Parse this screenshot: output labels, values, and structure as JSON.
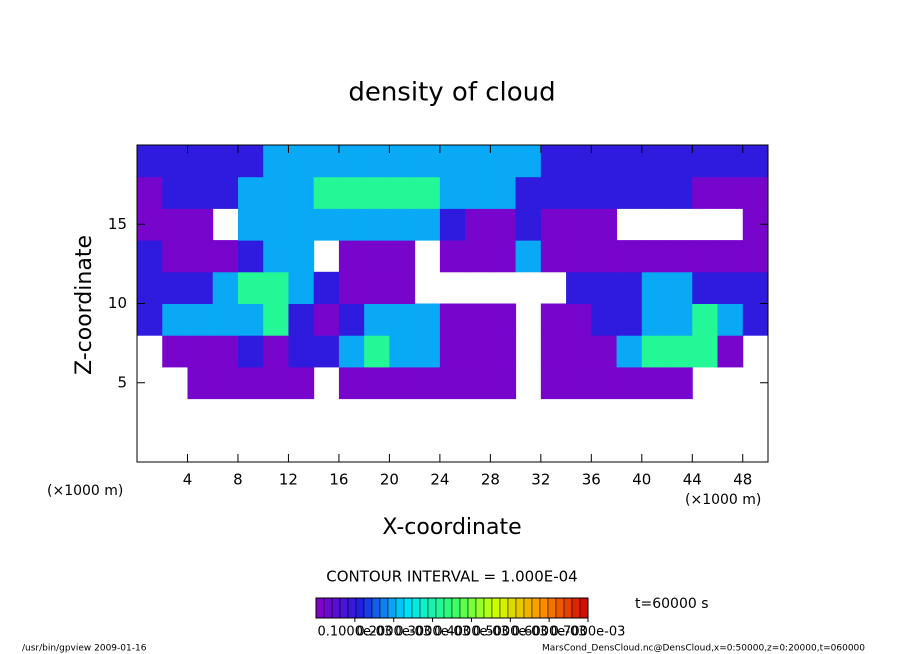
{
  "chart_data": {
    "type": "heatmap",
    "title": "density of cloud",
    "x_label": "X-coordinate",
    "y_label": "Z-coordinate",
    "x_unit_left": "(×1000 m)",
    "x_unit_right": "(×1000 m)",
    "contour_note": "CONTOUR INTERVAL = 1.000E-04",
    "time_label": "t=60000 s",
    "footer_left": "/usr/bin/gpview  2009-01-16",
    "footer_right": "MarsCond_DensCloud.nc@DensCloud,x=0:50000,z=0:20000,t=060000",
    "xlim": [
      0,
      50
    ],
    "ylim": [
      0,
      20
    ],
    "xticks": [
      4,
      8,
      12,
      16,
      20,
      24,
      28,
      32,
      36,
      40,
      44,
      48
    ],
    "yticks": [
      5,
      10,
      15
    ],
    "x": [
      0,
      2,
      4,
      6,
      8,
      10,
      12,
      14,
      16,
      18,
      20,
      22,
      24,
      26,
      28,
      30,
      32,
      34,
      36,
      38,
      40,
      42,
      44,
      46,
      48,
      50
    ],
    "y": [
      0,
      2,
      4,
      6,
      8,
      10,
      12,
      14,
      16,
      18,
      20
    ],
    "zlim": [
      0,
      0.0007
    ],
    "zticks": [
      {
        "value": 0.0001,
        "label": "0.1000e-03"
      },
      {
        "value": 0.0002,
        "label": "0.2000e-03"
      },
      {
        "value": 0.0003,
        "label": "0.3000e-03"
      },
      {
        "value": 0.0004,
        "label": "0.4000e-03"
      },
      {
        "value": 0.0005,
        "label": "0.5000e-03"
      },
      {
        "value": 0.0006,
        "label": "0.6000e-03"
      },
      {
        "value": 0.0007,
        "label": "0.7000e-03"
      }
    ],
    "colormap": [
      "#8a00c8",
      "#2020e0",
      "#00e0ff",
      "#30ff70",
      "#d0ff00",
      "#ff9000",
      "#d00000"
    ],
    "values": [
      [
        null,
        null,
        null,
        null,
        null,
        null,
        null,
        null,
        null,
        null,
        null,
        null,
        null,
        null,
        null,
        null,
        null,
        null,
        null,
        null,
        null,
        null,
        null,
        null,
        null
      ],
      [
        null,
        null,
        null,
        null,
        null,
        null,
        null,
        null,
        null,
        null,
        null,
        null,
        null,
        null,
        null,
        null,
        null,
        null,
        null,
        null,
        null,
        null,
        null,
        null,
        null
      ],
      [
        null,
        null,
        2e-05,
        2e-05,
        2e-05,
        2e-05,
        2e-05,
        null,
        2e-05,
        2e-05,
        2e-05,
        2e-05,
        2e-05,
        2e-05,
        2e-05,
        null,
        2e-05,
        2e-05,
        2e-05,
        2e-05,
        2e-05,
        2e-05,
        null,
        null,
        null
      ],
      [
        null,
        2e-05,
        2e-05,
        2e-05,
        0.0001,
        2e-05,
        0.0001,
        0.0001,
        0.0002,
        0.00032,
        0.0002,
        0.0002,
        2e-05,
        2e-05,
        2e-05,
        null,
        2e-05,
        2e-05,
        2e-05,
        0.0002,
        0.00032,
        0.00032,
        0.00032,
        2e-05,
        null
      ],
      [
        0.0001,
        0.0002,
        0.0002,
        0.0002,
        0.0002,
        0.00032,
        0.0001,
        2e-05,
        0.0001,
        0.0002,
        0.0002,
        0.0002,
        2e-05,
        2e-05,
        2e-05,
        null,
        2e-05,
        2e-05,
        0.0001,
        0.0001,
        0.0002,
        0.0002,
        0.00032,
        0.0002,
        0.0001
      ],
      [
        0.0001,
        0.0001,
        0.0001,
        0.0002,
        0.00032,
        0.00032,
        0.0002,
        0.0001,
        2e-05,
        2e-05,
        2e-05,
        null,
        null,
        null,
        null,
        null,
        null,
        0.0001,
        0.0001,
        0.0001,
        0.0002,
        0.0002,
        0.0001,
        0.0001,
        0.0001
      ],
      [
        0.0001,
        2e-05,
        2e-05,
        2e-05,
        0.0001,
        0.0002,
        0.0002,
        null,
        2e-05,
        2e-05,
        2e-05,
        null,
        2e-05,
        2e-05,
        2e-05,
        0.0002,
        2e-05,
        2e-05,
        2e-05,
        2e-05,
        2e-05,
        2e-05,
        2e-05,
        2e-05,
        2e-05
      ],
      [
        2e-05,
        2e-05,
        2e-05,
        null,
        0.0002,
        0.0002,
        0.0002,
        0.0002,
        0.0002,
        0.0002,
        0.0002,
        0.0002,
        0.0001,
        2e-05,
        2e-05,
        0.0001,
        2e-05,
        2e-05,
        2e-05,
        null,
        null,
        null,
        null,
        null,
        2e-05
      ],
      [
        2e-05,
        0.0001,
        0.0001,
        0.0001,
        0.0002,
        0.0002,
        0.0002,
        0.00032,
        0.00032,
        0.00032,
        0.00032,
        0.00032,
        0.0002,
        0.0002,
        0.0002,
        0.0001,
        0.0001,
        0.0001,
        0.0001,
        0.0001,
        0.0001,
        0.0001,
        2e-05,
        2e-05,
        2e-05
      ],
      [
        0.0001,
        0.0001,
        0.0001,
        0.0001,
        0.0001,
        0.0002,
        0.0002,
        0.0002,
        0.0002,
        0.0002,
        0.0002,
        0.0002,
        0.0002,
        0.0002,
        0.0002,
        0.0002,
        0.0001,
        0.0001,
        0.0001,
        0.0001,
        0.0001,
        0.0001,
        0.0001,
        0.0001,
        0.0001
      ]
    ]
  }
}
